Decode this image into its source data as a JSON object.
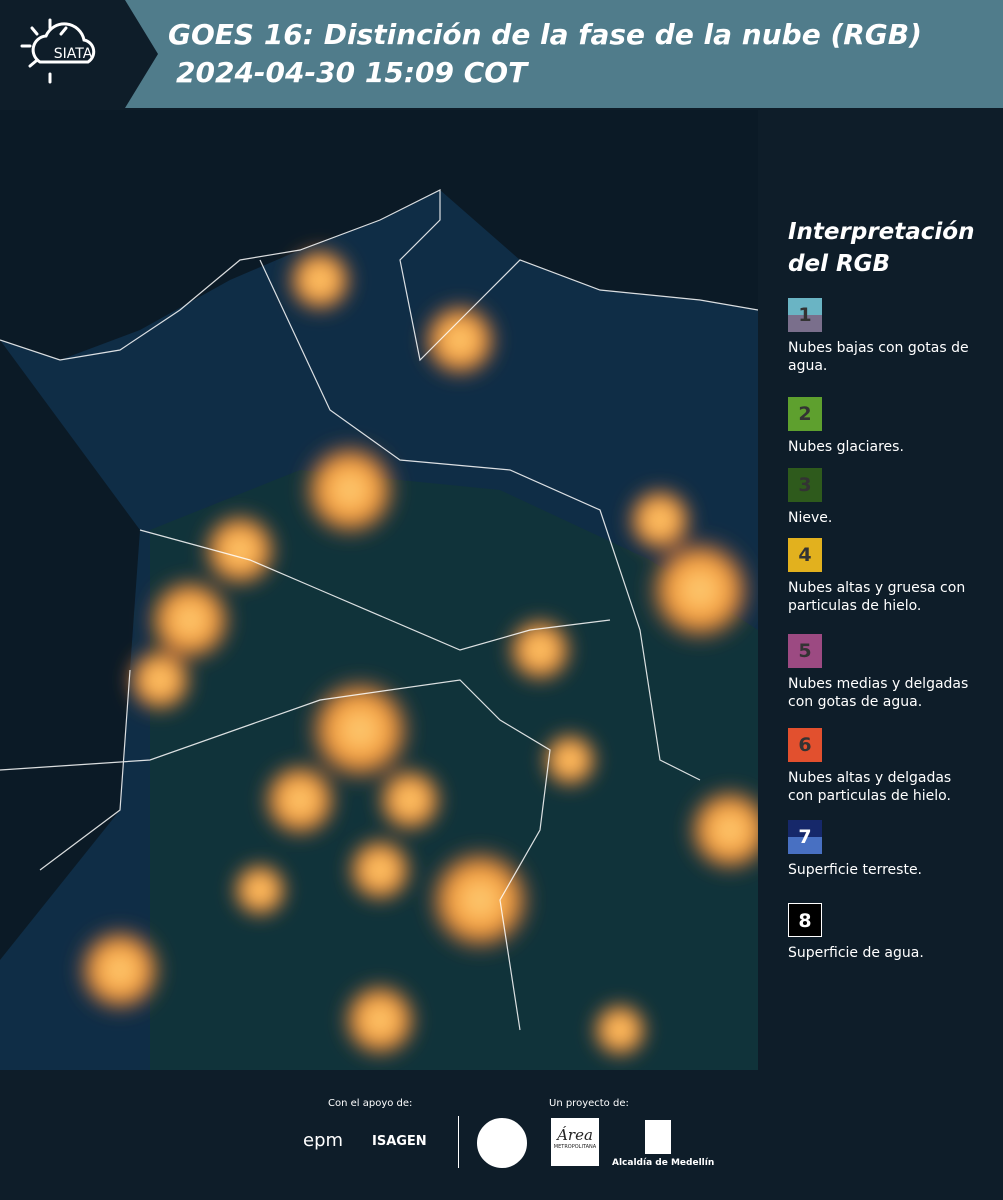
{
  "header": {
    "logo": "SIATA",
    "title": "GOES 16: Distinción de la fase de la nube (RGB)",
    "timestamp": "2024-04-30 15:09 COT"
  },
  "legend": {
    "title_line1": "Interpretación",
    "title_line2": "del RGB",
    "items": [
      {
        "number": "1",
        "label": "Nubes bajas con gotas de agua.",
        "colors": [
          "#6ab4c4",
          "#7a6f8c"
        ]
      },
      {
        "number": "2",
        "label": "Nubes glaciares.",
        "colors": [
          "#5ea02e"
        ]
      },
      {
        "number": "3",
        "label": "Nieve.",
        "colors": [
          "#2e5a1c"
        ]
      },
      {
        "number": "4",
        "label": "Nubes altas y gruesa con particulas de hielo.",
        "colors": [
          "#e2b11e"
        ]
      },
      {
        "number": "5",
        "label": "Nubes medias y delgadas con gotas de agua.",
        "colors": [
          "#9c4a82"
        ]
      },
      {
        "number": "6",
        "label": "Nubes altas y delgadas con particulas de hielo.",
        "colors": [
          "#e2502e"
        ]
      },
      {
        "number": "7",
        "label": "Superficie terreste.",
        "colors": [
          "#16286a",
          "#4870c2"
        ]
      },
      {
        "number": "8",
        "label": "Superficie de agua.",
        "colors": [
          "#000000"
        ]
      }
    ]
  },
  "footer": {
    "support_label": "Con el apoyo de:",
    "sponsor1": "epm",
    "sponsor2": "ISAGEN",
    "project_label": "Un proyecto de:",
    "partner1": "Área",
    "partner1_sub": "METROPOLITANA",
    "partner2": "Alcaldía de Medellín"
  }
}
